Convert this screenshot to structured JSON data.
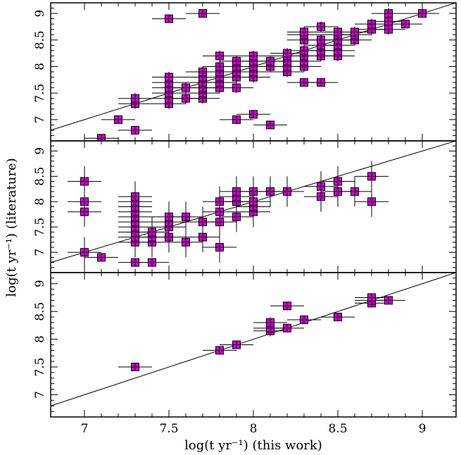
{
  "figure": {
    "xlabel": "log(t  yr⁻¹) (this work)",
    "ylabel": "log(t  yr⁻¹) (literature)"
  },
  "chart_data": {
    "type": "scatter",
    "layout": "three vertically stacked panels sharing the x axis",
    "xlabel": "log(t  yr⁻¹) (this work)",
    "ylabel": "log(t  yr⁻¹) (literature)",
    "xlim": [
      6.8,
      9.2
    ],
    "ylim": [
      6.6,
      9.2
    ],
    "x_ticks": [
      "7",
      "7.5",
      "8",
      "8.5",
      "9"
    ],
    "y_ticks": [
      "7",
      "7.5",
      "8",
      "8.5",
      "9"
    ],
    "one_to_one_line": true,
    "marker_color": "#cc00cc",
    "grid": false,
    "panels": [
      {
        "name": "top",
        "points": [
          [
            7.1,
            6.65,
            0.1,
            0.05
          ],
          [
            7.2,
            7.0,
            0.1,
            0.05
          ],
          [
            7.3,
            6.8,
            0.1,
            0.05
          ],
          [
            7.3,
            7.3,
            0.1,
            0.1
          ],
          [
            7.3,
            7.4,
            0.1,
            0.1
          ],
          [
            7.5,
            8.9,
            0.1,
            0.05
          ],
          [
            7.5,
            7.3,
            0.1,
            0.1
          ],
          [
            7.5,
            7.4,
            0.1,
            0.1
          ],
          [
            7.5,
            7.5,
            0.1,
            0.1
          ],
          [
            7.5,
            7.6,
            0.1,
            0.1
          ],
          [
            7.5,
            7.7,
            0.1,
            0.1
          ],
          [
            7.5,
            7.8,
            0.1,
            0.1
          ],
          [
            7.6,
            7.4,
            0.1,
            0.1
          ],
          [
            7.6,
            7.6,
            0.1,
            0.1
          ],
          [
            7.7,
            9.0,
            0.1,
            0.05
          ],
          [
            7.7,
            7.4,
            0.1,
            0.1
          ],
          [
            7.7,
            7.5,
            0.1,
            0.1
          ],
          [
            7.7,
            7.6,
            0.1,
            0.1
          ],
          [
            7.7,
            7.7,
            0.1,
            0.1
          ],
          [
            7.7,
            7.8,
            0.1,
            0.1
          ],
          [
            7.7,
            7.9,
            0.1,
            0.1
          ],
          [
            7.8,
            7.6,
            0.1,
            0.1
          ],
          [
            7.8,
            7.7,
            0.1,
            0.1
          ],
          [
            7.8,
            7.8,
            0.1,
            0.1
          ],
          [
            7.8,
            7.9,
            0.1,
            0.1
          ],
          [
            7.8,
            8.0,
            0.1,
            0.1
          ],
          [
            7.8,
            8.2,
            0.1,
            0.1
          ],
          [
            7.9,
            7.0,
            0.1,
            0.05
          ],
          [
            7.9,
            7.6,
            0.1,
            0.1
          ],
          [
            7.9,
            7.8,
            0.1,
            0.1
          ],
          [
            7.9,
            7.9,
            0.1,
            0.1
          ],
          [
            7.9,
            8.0,
            0.1,
            0.1
          ],
          [
            7.9,
            8.1,
            0.1,
            0.1
          ],
          [
            8.0,
            7.1,
            0.1,
            0.05
          ],
          [
            8.0,
            7.8,
            0.1,
            0.1
          ],
          [
            8.0,
            7.9,
            0.1,
            0.1
          ],
          [
            8.0,
            8.0,
            0.1,
            0.1
          ],
          [
            8.0,
            8.1,
            0.1,
            0.1
          ],
          [
            8.0,
            8.2,
            0.1,
            0.1
          ],
          [
            8.1,
            6.9,
            0.1,
            0.05
          ],
          [
            8.1,
            8.0,
            0.1,
            0.1
          ],
          [
            8.1,
            8.1,
            0.1,
            0.1
          ],
          [
            8.2,
            7.9,
            0.1,
            0.1
          ],
          [
            8.2,
            8.0,
            0.1,
            0.1
          ],
          [
            8.2,
            8.1,
            0.1,
            0.1
          ],
          [
            8.2,
            8.2,
            0.1,
            0.1
          ],
          [
            8.2,
            8.25,
            0.1,
            0.1
          ],
          [
            8.3,
            7.7,
            0.1,
            0.05
          ],
          [
            8.3,
            8.0,
            0.1,
            0.1
          ],
          [
            8.3,
            8.1,
            0.1,
            0.1
          ],
          [
            8.3,
            8.2,
            0.1,
            0.1
          ],
          [
            8.3,
            8.3,
            0.1,
            0.1
          ],
          [
            8.3,
            8.5,
            0.1,
            0.1
          ],
          [
            8.3,
            8.6,
            0.1,
            0.1
          ],
          [
            8.3,
            8.65,
            0.1,
            0.1
          ],
          [
            8.4,
            7.7,
            0.1,
            0.05
          ],
          [
            8.4,
            8.2,
            0.1,
            0.1
          ],
          [
            8.4,
            8.3,
            0.1,
            0.1
          ],
          [
            8.4,
            8.4,
            0.1,
            0.1
          ],
          [
            8.4,
            8.5,
            0.1,
            0.1
          ],
          [
            8.4,
            8.75,
            0.1,
            0.1
          ],
          [
            8.5,
            8.2,
            0.1,
            0.1
          ],
          [
            8.5,
            8.3,
            0.1,
            0.1
          ],
          [
            8.5,
            8.4,
            0.1,
            0.1
          ],
          [
            8.5,
            8.5,
            0.1,
            0.1
          ],
          [
            8.5,
            8.6,
            0.1,
            0.1
          ],
          [
            8.5,
            8.65,
            0.1,
            0.1
          ],
          [
            8.6,
            8.5,
            0.1,
            0.1
          ],
          [
            8.6,
            8.6,
            0.1,
            0.1
          ],
          [
            8.6,
            8.65,
            0.1,
            0.1
          ],
          [
            8.7,
            8.7,
            0.1,
            0.1
          ],
          [
            8.7,
            8.8,
            0.1,
            0.1
          ],
          [
            8.8,
            8.7,
            0.1,
            0.1
          ],
          [
            8.8,
            8.85,
            0.1,
            0.1
          ],
          [
            8.8,
            9.0,
            0.1,
            0.1
          ],
          [
            8.9,
            8.8,
            0.1,
            0.05
          ],
          [
            9.0,
            9.0,
            0.1,
            0.05
          ]
        ]
      },
      {
        "name": "middle",
        "points": [
          [
            7.0,
            8.4,
            0.1,
            0.3
          ],
          [
            7.0,
            8.0,
            0.1,
            0.3
          ],
          [
            7.0,
            7.8,
            0.1,
            0.3
          ],
          [
            7.0,
            7.0,
            0.1,
            0.3
          ],
          [
            7.1,
            6.9,
            0.1,
            0.05
          ],
          [
            7.3,
            6.8,
            0.1,
            0.05
          ],
          [
            7.3,
            7.2,
            0.1,
            0.3
          ],
          [
            7.3,
            7.3,
            0.1,
            0.3
          ],
          [
            7.3,
            7.4,
            0.1,
            0.3
          ],
          [
            7.3,
            7.5,
            0.1,
            0.3
          ],
          [
            7.3,
            7.6,
            0.1,
            0.3
          ],
          [
            7.3,
            7.7,
            0.1,
            0.3
          ],
          [
            7.3,
            7.8,
            0.1,
            0.3
          ],
          [
            7.3,
            7.9,
            0.1,
            0.3
          ],
          [
            7.3,
            8.0,
            0.1,
            0.3
          ],
          [
            7.3,
            8.1,
            0.1,
            0.3
          ],
          [
            7.4,
            6.8,
            0.1,
            0.05
          ],
          [
            7.4,
            7.2,
            0.1,
            0.3
          ],
          [
            7.4,
            7.3,
            0.1,
            0.3
          ],
          [
            7.4,
            7.4,
            0.1,
            0.3
          ],
          [
            7.5,
            7.3,
            0.1,
            0.3
          ],
          [
            7.5,
            7.5,
            0.1,
            0.3
          ],
          [
            7.5,
            7.6,
            0.1,
            0.3
          ],
          [
            7.5,
            7.7,
            0.1,
            0.3
          ],
          [
            7.6,
            7.2,
            0.1,
            0.3
          ],
          [
            7.6,
            7.7,
            0.1,
            0.3
          ],
          [
            7.7,
            7.3,
            0.1,
            0.3
          ],
          [
            7.7,
            7.6,
            0.1,
            0.3
          ],
          [
            7.8,
            7.1,
            0.1,
            0.3
          ],
          [
            7.8,
            7.6,
            0.1,
            0.3
          ],
          [
            7.8,
            7.8,
            0.1,
            0.3
          ],
          [
            7.8,
            8.0,
            0.1,
            0.3
          ],
          [
            7.9,
            7.7,
            0.1,
            0.3
          ],
          [
            7.9,
            8.0,
            0.1,
            0.3
          ],
          [
            7.9,
            8.1,
            0.1,
            0.3
          ],
          [
            7.9,
            8.2,
            0.1,
            0.3
          ],
          [
            8.0,
            7.8,
            0.1,
            0.3
          ],
          [
            8.0,
            7.9,
            0.1,
            0.3
          ],
          [
            8.0,
            8.0,
            0.1,
            0.3
          ],
          [
            8.0,
            8.2,
            0.1,
            0.3
          ],
          [
            8.1,
            8.2,
            0.1,
            0.3
          ],
          [
            8.2,
            8.2,
            0.1,
            0.3
          ],
          [
            8.4,
            8.1,
            0.1,
            0.3
          ],
          [
            8.4,
            8.3,
            0.1,
            0.3
          ],
          [
            8.5,
            8.2,
            0.1,
            0.3
          ],
          [
            8.5,
            8.4,
            0.1,
            0.3
          ],
          [
            8.6,
            8.2,
            0.1,
            0.3
          ],
          [
            8.7,
            8.0,
            0.1,
            0.3
          ],
          [
            8.7,
            8.5,
            0.1,
            0.3
          ]
        ]
      },
      {
        "name": "bottom",
        "points": [
          [
            7.3,
            7.5,
            0.1,
            0.05
          ],
          [
            7.8,
            7.8,
            0.1,
            0.05
          ],
          [
            7.9,
            7.9,
            0.1,
            0.05
          ],
          [
            8.1,
            8.15,
            0.1,
            0.1
          ],
          [
            8.1,
            8.2,
            0.1,
            0.1
          ],
          [
            8.1,
            8.3,
            0.1,
            0.1
          ],
          [
            8.2,
            8.2,
            0.1,
            0.05
          ],
          [
            8.2,
            8.6,
            0.1,
            0.05
          ],
          [
            8.3,
            8.35,
            0.1,
            0.05
          ],
          [
            8.5,
            8.4,
            0.1,
            0.05
          ],
          [
            8.7,
            8.65,
            0.1,
            0.05
          ],
          [
            8.7,
            8.7,
            0.1,
            0.05
          ],
          [
            8.7,
            8.75,
            0.1,
            0.05
          ],
          [
            8.8,
            8.7,
            0.1,
            0.05
          ]
        ]
      }
    ]
  }
}
